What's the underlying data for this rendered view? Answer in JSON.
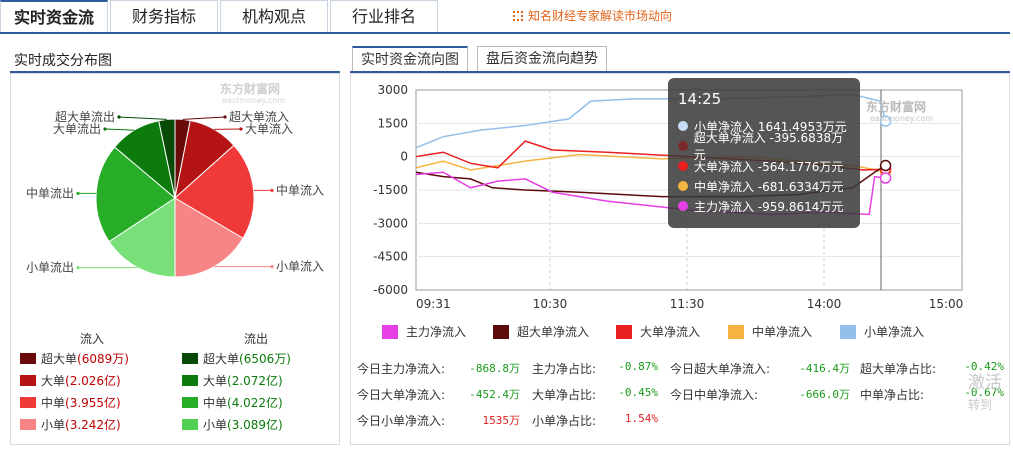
{
  "tabs": [
    "实时资金流",
    "财务指标",
    "机构观点",
    "行业排名"
  ],
  "tip": "知名财经专家解读市场动向",
  "left_title": "实时成交分布图",
  "right_tabs": [
    "实时资金流向图",
    "盘后资金流向趋势"
  ],
  "watermark": "东方财富网",
  "watermark_sub": "eastmoney.com",
  "pie": {
    "slices": [
      {
        "label": "超大单流入",
        "value": 0.6089,
        "color": "#6b0a0a"
      },
      {
        "label": "大单流入",
        "value": 2.026,
        "color": "#b41414"
      },
      {
        "label": "中单流入",
        "value": 3.955,
        "color": "#f03a3a"
      },
      {
        "label": "小单流入",
        "value": 3.242,
        "color": "#f78585"
      },
      {
        "label": "小单流出",
        "value": 3.089,
        "color": "#79e079"
      },
      {
        "label": "中单流出",
        "value": 4.022,
        "color": "#27ad27"
      },
      {
        "label": "大单流出",
        "value": 2.072,
        "color": "#0c7a0c"
      },
      {
        "label": "超大单流出",
        "value": 0.6506,
        "color": "#064a06"
      }
    ]
  },
  "legend": {
    "in_title": "流入",
    "out_title": "流出",
    "in": [
      {
        "name": "超大单",
        "val": "(6089万)",
        "color": "#6b0a0a"
      },
      {
        "name": "大单",
        "val": "(2.026亿)",
        "color": "#b41414"
      },
      {
        "name": "中单",
        "val": "(3.955亿)",
        "color": "#f03a3a"
      },
      {
        "name": "小单",
        "val": "(3.242亿)",
        "color": "#f78585"
      }
    ],
    "out": [
      {
        "name": "超大单",
        "val": "(6506万)",
        "color": "#064a06"
      },
      {
        "name": "大单",
        "val": "(2.072亿)",
        "color": "#0c7a0c"
      },
      {
        "name": "中单",
        "val": "(4.022亿)",
        "color": "#27ad27"
      },
      {
        "name": "小单",
        "val": "(3.089亿)",
        "color": "#52d052"
      }
    ]
  },
  "chart_data": {
    "type": "line",
    "ylim": [
      -6000,
      3000
    ],
    "y_ticks": [
      "3000",
      "1500",
      "0",
      "-1500",
      "-3000",
      "-4500",
      "-6000"
    ],
    "x_ticks": [
      "09:31",
      "10:30",
      "11:30",
      "14:00",
      "15:00"
    ],
    "series": [
      {
        "name": "主力净流入",
        "color": "#e63fe6"
      },
      {
        "name": "超大单净流入",
        "color": "#5c0a0a"
      },
      {
        "name": "大单净流入",
        "color": "#e82020"
      },
      {
        "name": "中单净流入",
        "color": "#f5b342"
      },
      {
        "name": "小单净流入",
        "color": "#93bfea"
      }
    ]
  },
  "tooltip": {
    "time": "14:25",
    "rows": [
      {
        "text": "小单净流入 1641.4953万元",
        "color": "#c8dcf5"
      },
      {
        "text": "超大单净流入 -395.6838万元",
        "color": "#7a2a2a"
      },
      {
        "text": "大单净流入 -564.1776万元",
        "color": "#e82020"
      },
      {
        "text": "中单净流入 -681.6334万元",
        "color": "#f5b342"
      },
      {
        "text": "主力净流入 -959.8614万元",
        "color": "#e63fe6"
      }
    ]
  },
  "stats": [
    {
      "label": "今日主力净流入:",
      "value": "-868.8万",
      "vcolor": "#1a9a1a"
    },
    {
      "label": "主力净占比:",
      "value": "-0.87%",
      "vcolor": "#1a9a1a"
    },
    {
      "label": "今日超大单净流入:",
      "value": "-416.4万",
      "vcolor": "#1a9a1a"
    },
    {
      "label": "超大单净占比:",
      "value": "-0.42%",
      "vcolor": "#1a9a1a"
    },
    {
      "label": "今日大单净流入:",
      "value": "-452.4万",
      "vcolor": "#1a9a1a"
    },
    {
      "label": "大单净占比:",
      "value": "-0.45%",
      "vcolor": "#1a9a1a"
    },
    {
      "label": "今日中单净流入:",
      "value": "-666.0万",
      "vcolor": "#1a9a1a"
    },
    {
      "label": "中单净占比:",
      "value": "-0.67%",
      "vcolor": "#1a9a1a"
    },
    {
      "label": "今日小单净流入:",
      "value": "1535万",
      "vcolor": "#e02020"
    },
    {
      "label": "小单净占比:",
      "value": "1.54%",
      "vcolor": "#e02020"
    }
  ],
  "activate_text": "激活",
  "activate_sub": "转到"
}
